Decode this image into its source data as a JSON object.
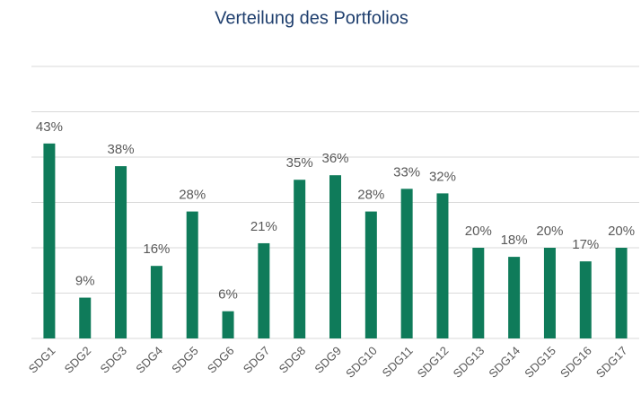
{
  "chart_data": {
    "type": "bar",
    "title": "Verteilung des Portfolios",
    "categories": [
      "SDG1",
      "SDG2",
      "SDG3",
      "SDG4",
      "SDG5",
      "SDG6",
      "SDG7",
      "SDG8",
      "SDG9",
      "SDG10",
      "SDG11",
      "SDG12",
      "SDG13",
      "SDG14",
      "SDG15",
      "SDG16",
      "SDG17"
    ],
    "values": [
      43,
      9,
      38,
      16,
      28,
      6,
      21,
      35,
      36,
      28,
      33,
      32,
      20,
      18,
      20,
      17,
      20
    ],
    "value_labels": [
      "43%",
      "9%",
      "38%",
      "16%",
      "28%",
      "6%",
      "21%",
      "35%",
      "36%",
      "28%",
      "33%",
      "32%",
      "20%",
      "18%",
      "20%",
      "17%",
      "20%"
    ],
    "color": "#0f7b5a",
    "ylim": [
      0,
      60
    ],
    "yticks": [
      0,
      10,
      20,
      30,
      40,
      50,
      60
    ],
    "grid": true
  }
}
